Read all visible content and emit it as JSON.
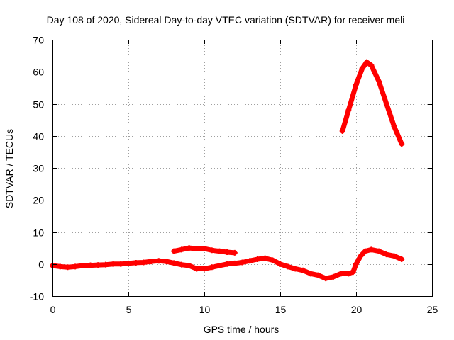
{
  "chart_data": {
    "type": "scatter",
    "title": "Day 108 of 2020, Sidereal Day-to-day VTEC variation (SDTVAR) for receiver meli",
    "xlabel": "GPS time / hours",
    "ylabel": "SDTVAR / TECUs",
    "xlim": [
      0,
      25
    ],
    "ylim": [
      -10,
      70
    ],
    "xticks": [
      0,
      5,
      10,
      15,
      20,
      25
    ],
    "yticks": [
      -10,
      0,
      10,
      20,
      30,
      40,
      50,
      60,
      70
    ],
    "xtick_labels": [
      "0",
      "5",
      "10",
      "15",
      "20",
      "25"
    ],
    "ytick_labels": [
      "-10",
      "0",
      "10",
      "20",
      "30",
      "40",
      "50",
      "60",
      "70"
    ],
    "grid": true,
    "legend": "none",
    "series": [
      {
        "name": "main",
        "color": "#ff0000",
        "marker": "cross",
        "x": [
          0,
          0.5,
          1,
          1.5,
          2,
          2.5,
          3,
          3.5,
          4,
          4.5,
          5,
          5.5,
          6,
          6.5,
          7,
          7.5,
          8,
          8.5,
          9,
          9.5,
          10,
          10.5,
          11,
          11.5,
          12,
          12.5,
          13,
          13.5,
          14,
          14.5,
          15,
          15.5,
          16,
          16.5,
          17,
          17.5,
          18,
          18.5,
          19,
          19.5,
          19.8,
          20,
          20.3,
          20.6,
          21,
          21.5,
          22,
          22.5,
          23
        ],
        "y": [
          -0.5,
          -0.8,
          -1,
          -0.8,
          -0.5,
          -0.4,
          -0.3,
          -0.2,
          0,
          0,
          0.2,
          0.4,
          0.5,
          0.8,
          1,
          0.8,
          0.3,
          -0.2,
          -0.5,
          -1.5,
          -1.5,
          -1,
          -0.5,
          0,
          0.2,
          0.5,
          1,
          1.5,
          1.8,
          1.2,
          0,
          -0.8,
          -1.5,
          -2,
          -3,
          -3.5,
          -4.5,
          -4,
          -3,
          -3,
          -2.5,
          0,
          2.5,
          4,
          4.5,
          4,
          3,
          2.5,
          1.5
        ]
      },
      {
        "name": "hump",
        "color": "#ff0000",
        "marker": "cross",
        "x": [
          8,
          8.5,
          9,
          9.5,
          10,
          10.5,
          11,
          11.5,
          12
        ],
        "y": [
          4,
          4.5,
          5,
          4.8,
          4.8,
          4.3,
          4,
          3.7,
          3.5
        ]
      },
      {
        "name": "peak",
        "color": "#ff0000",
        "marker": "cross",
        "x": [
          19.1,
          19.5,
          20,
          20.4,
          20.7,
          21,
          21.5,
          22,
          22.5,
          23
        ],
        "y": [
          41.5,
          48,
          56,
          61,
          63,
          62,
          57,
          50,
          43,
          37.5
        ]
      }
    ]
  }
}
